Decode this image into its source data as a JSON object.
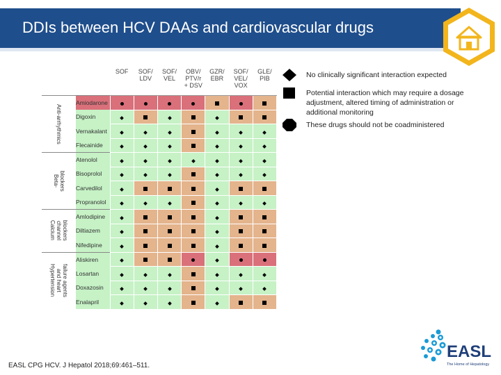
{
  "header": {
    "title": "DDIs between HCV DAAs and cardiovascular drugs"
  },
  "table": {
    "columns": [
      [
        "SOF"
      ],
      [
        "SOF/",
        "LDV"
      ],
      [
        "SOF/",
        "VEL"
      ],
      [
        "OBV/",
        "PTV/r",
        "+ DSV"
      ],
      [
        "GZR/",
        "EBR"
      ],
      [
        "SOF/",
        "VEL/",
        "VOX"
      ],
      [
        "GLE/",
        "PIB"
      ]
    ],
    "groups": [
      {
        "label": [
          "Anti-arrhythmics"
        ],
        "rows": [
          {
            "drug": "Amiodarone",
            "cells": [
              [
                "r",
                "c"
              ],
              [
                "r",
                "c"
              ],
              [
                "r",
                "c"
              ],
              [
                "r",
                "c"
              ],
              [
                "o",
                "s"
              ],
              [
                "r",
                "c"
              ],
              [
                "o",
                "s"
              ]
            ]
          },
          {
            "drug": "Digoxin",
            "cells": [
              [
                "g",
                "d"
              ],
              [
                "o",
                "s"
              ],
              [
                "g",
                "d"
              ],
              [
                "o",
                "s"
              ],
              [
                "g",
                "d"
              ],
              [
                "o",
                "s"
              ],
              [
                "o",
                "s"
              ]
            ]
          },
          {
            "drug": "Vernakalant",
            "cells": [
              [
                "g",
                "d"
              ],
              [
                "g",
                "d"
              ],
              [
                "g",
                "d"
              ],
              [
                "o",
                "s"
              ],
              [
                "g",
                "d"
              ],
              [
                "g",
                "d"
              ],
              [
                "g",
                "d"
              ]
            ]
          },
          {
            "drug": "Flecainide",
            "cells": [
              [
                "g",
                "d"
              ],
              [
                "g",
                "d"
              ],
              [
                "g",
                "d"
              ],
              [
                "o",
                "s"
              ],
              [
                "g",
                "d"
              ],
              [
                "g",
                "d"
              ],
              [
                "g",
                "d"
              ]
            ]
          }
        ]
      },
      {
        "label": [
          "Beta-",
          "blockers"
        ],
        "rows": [
          {
            "drug": "Atenolol",
            "cells": [
              [
                "g",
                "d"
              ],
              [
                "g",
                "d"
              ],
              [
                "g",
                "d"
              ],
              [
                "g",
                "d"
              ],
              [
                "g",
                "d"
              ],
              [
                "g",
                "d"
              ],
              [
                "g",
                "d"
              ]
            ]
          },
          {
            "drug": "Bisoprolol",
            "cells": [
              [
                "g",
                "d"
              ],
              [
                "g",
                "d"
              ],
              [
                "g",
                "d"
              ],
              [
                "o",
                "s"
              ],
              [
                "g",
                "d"
              ],
              [
                "g",
                "d"
              ],
              [
                "g",
                "d"
              ]
            ]
          },
          {
            "drug": "Carvedilol",
            "cells": [
              [
                "g",
                "d"
              ],
              [
                "o",
                "s"
              ],
              [
                "o",
                "s"
              ],
              [
                "o",
                "s"
              ],
              [
                "g",
                "d"
              ],
              [
                "o",
                "s"
              ],
              [
                "o",
                "s"
              ]
            ]
          },
          {
            "drug": "Propranolol",
            "cells": [
              [
                "g",
                "d"
              ],
              [
                "g",
                "d"
              ],
              [
                "g",
                "d"
              ],
              [
                "o",
                "s"
              ],
              [
                "g",
                "d"
              ],
              [
                "g",
                "d"
              ],
              [
                "g",
                "d"
              ]
            ]
          }
        ]
      },
      {
        "label": [
          "Calcium",
          "channel",
          "blockers"
        ],
        "rows": [
          {
            "drug": "Amlodipine",
            "cells": [
              [
                "g",
                "d"
              ],
              [
                "o",
                "s"
              ],
              [
                "o",
                "s"
              ],
              [
                "o",
                "s"
              ],
              [
                "g",
                "d"
              ],
              [
                "o",
                "s"
              ],
              [
                "o",
                "s"
              ]
            ]
          },
          {
            "drug": "Diltiazem",
            "cells": [
              [
                "g",
                "d"
              ],
              [
                "o",
                "s"
              ],
              [
                "o",
                "s"
              ],
              [
                "o",
                "s"
              ],
              [
                "g",
                "d"
              ],
              [
                "o",
                "s"
              ],
              [
                "o",
                "s"
              ]
            ]
          },
          {
            "drug": "Nifedipine",
            "cells": [
              [
                "g",
                "d"
              ],
              [
                "o",
                "s"
              ],
              [
                "o",
                "s"
              ],
              [
                "o",
                "s"
              ],
              [
                "g",
                "d"
              ],
              [
                "o",
                "s"
              ],
              [
                "o",
                "s"
              ]
            ]
          }
        ]
      },
      {
        "label": [
          "Hypertension",
          "and heart",
          "failure agents"
        ],
        "rows": [
          {
            "drug": "Aliskiren",
            "cells": [
              [
                "g",
                "d"
              ],
              [
                "o",
                "s"
              ],
              [
                "o",
                "s"
              ],
              [
                "r",
                "c"
              ],
              [
                "g",
                "d"
              ],
              [
                "r",
                "c"
              ],
              [
                "r",
                "c"
              ]
            ]
          },
          {
            "drug": "Losartan",
            "cells": [
              [
                "g",
                "d"
              ],
              [
                "g",
                "d"
              ],
              [
                "g",
                "d"
              ],
              [
                "o",
                "s"
              ],
              [
                "g",
                "d"
              ],
              [
                "g",
                "d"
              ],
              [
                "g",
                "d"
              ]
            ]
          },
          {
            "drug": "Doxazosin",
            "cells": [
              [
                "g",
                "d"
              ],
              [
                "g",
                "d"
              ],
              [
                "g",
                "d"
              ],
              [
                "o",
                "s"
              ],
              [
                "g",
                "d"
              ],
              [
                "g",
                "d"
              ],
              [
                "g",
                "d"
              ]
            ]
          },
          {
            "drug": "Enalapril",
            "cells": [
              [
                "g",
                "d"
              ],
              [
                "g",
                "d"
              ],
              [
                "g",
                "d"
              ],
              [
                "o",
                "s"
              ],
              [
                "g",
                "d"
              ],
              [
                "o",
                "s"
              ],
              [
                "o",
                "s"
              ]
            ]
          }
        ]
      }
    ]
  },
  "legend": [
    {
      "symbol": "diamond-icon",
      "text": "No clinically significant interaction expected"
    },
    {
      "symbol": "square-icon",
      "text": "Potential interaction which may require a dosage adjustment, altered timing of administration or additional monitoring"
    },
    {
      "symbol": "octagon-icon",
      "text": "These drugs should not be coadministered"
    }
  ],
  "colors": {
    "header": "#1f4e8c",
    "green": "#c6f2c6",
    "orange": "#e4b48c",
    "red": "#d9707a",
    "badge": "#f2b51c"
  },
  "footer": {
    "citation": "EASL CPG HCV. J Hepatol 2018;69:461–511."
  },
  "logo": {
    "text": "EASL",
    "tagline": "The Home of Hepatology"
  }
}
